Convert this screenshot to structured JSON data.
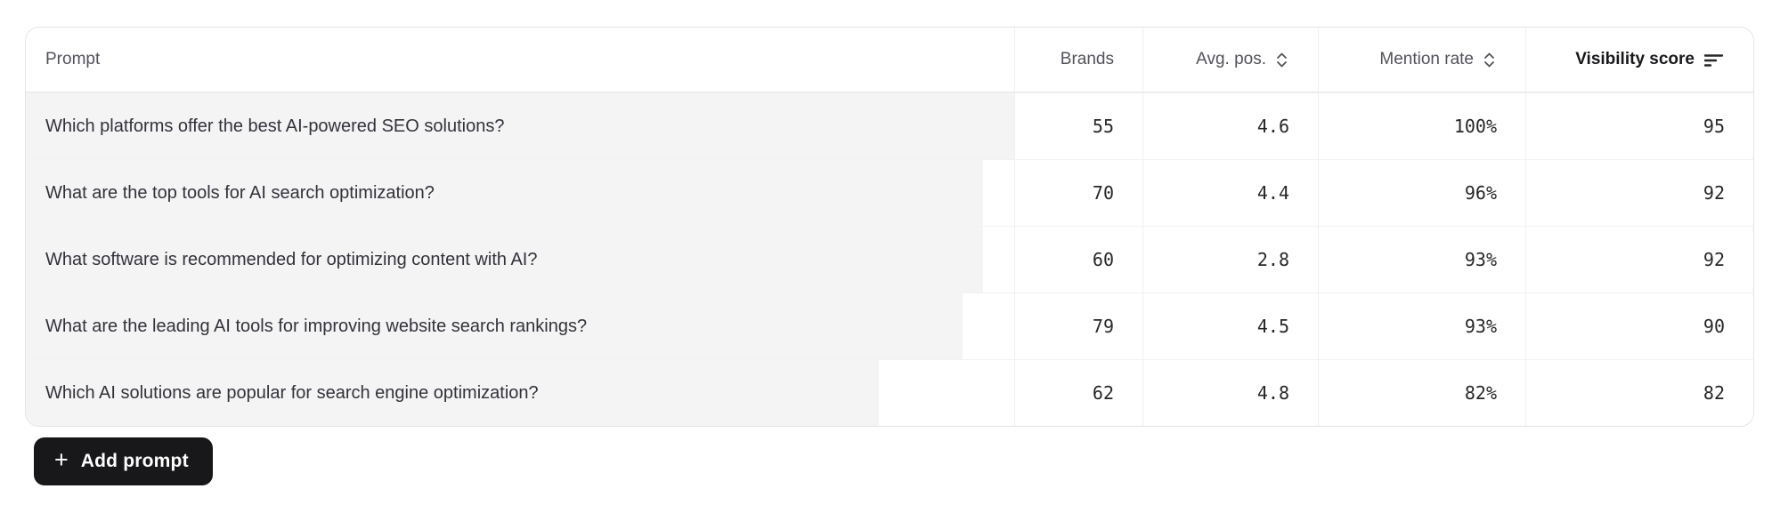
{
  "table": {
    "columns": [
      {
        "label": "Prompt",
        "sort": "none"
      },
      {
        "label": "Brands",
        "sort": "none"
      },
      {
        "label": "Avg. pos.",
        "sort": "sortable"
      },
      {
        "label": "Mention rate",
        "sort": "sortable"
      },
      {
        "label": "Visibility score",
        "sort": "active-desc"
      }
    ],
    "rows": [
      {
        "prompt": "Which platforms offer the best AI-powered SEO solutions?",
        "brands": "55",
        "avg_pos": "4.6",
        "mention_rate": "100%",
        "visibility_score": "95"
      },
      {
        "prompt": "What are the top tools for AI search optimization?",
        "brands": "70",
        "avg_pos": "4.4",
        "mention_rate": "96%",
        "visibility_score": "92"
      },
      {
        "prompt": "What software is recommended for optimizing content with AI?",
        "brands": "60",
        "avg_pos": "2.8",
        "mention_rate": "93%",
        "visibility_score": "92"
      },
      {
        "prompt": "What are the leading AI tools for improving website search rankings?",
        "brands": "79",
        "avg_pos": "4.5",
        "mention_rate": "93%",
        "visibility_score": "90"
      },
      {
        "prompt": "Which AI solutions are popular for search engine optimization?",
        "brands": "62",
        "avg_pos": "4.8",
        "mention_rate": "82%",
        "visibility_score": "82"
      }
    ]
  },
  "add_button": {
    "label": "Add prompt",
    "icon": "plus"
  },
  "colors": {
    "row_bar": "#f4f4f5",
    "button_bg": "#18181b",
    "header_text": "#52525b",
    "body_text": "#27272a",
    "card_border": "#e4e4e7"
  }
}
